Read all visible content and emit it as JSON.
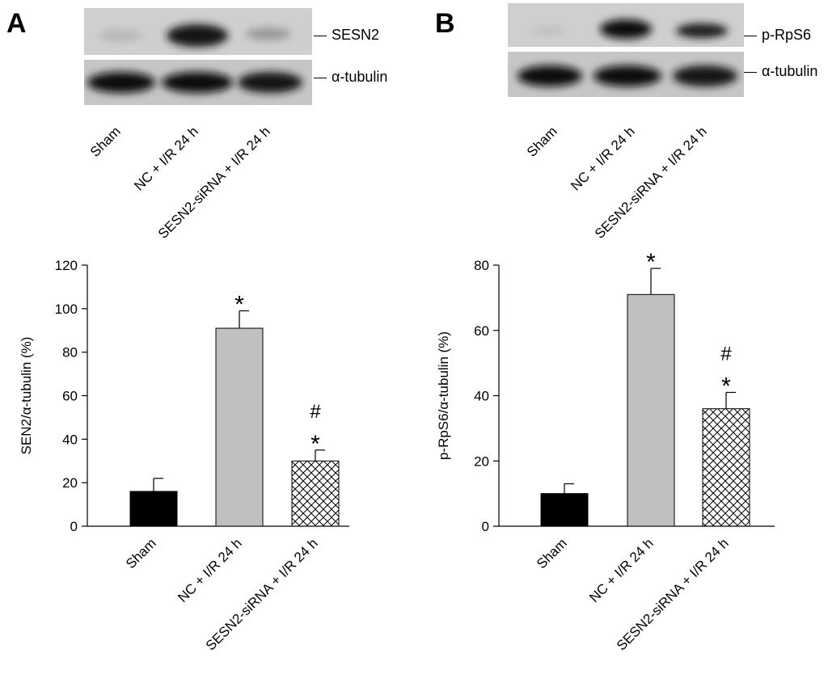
{
  "panels": [
    {
      "letter": "A",
      "blot_labels": [
        "SESN2",
        "α-tubulin"
      ],
      "lane_labels": [
        "Sham",
        "NC + I/R 24 h",
        "SESN2-siRNA + I/R 24 h"
      ]
    },
    {
      "letter": "B",
      "blot_labels": [
        "p-RpS6",
        "α-tubulin"
      ],
      "lane_labels": [
        "Sham",
        "NC + I/R 24 h",
        "SESN2-siRNA + I/R 24 h"
      ]
    }
  ],
  "colors": {
    "sham": "#000000",
    "nc": "#c0c0c0",
    "sirna": "#ffffff"
  },
  "chart_data": [
    {
      "type": "bar",
      "categories": [
        "Sham",
        "NC + I/R 24 h",
        "SESN2-siRNA + I/R 24 h"
      ],
      "values": [
        16,
        91,
        30
      ],
      "errors": [
        6,
        8,
        5
      ],
      "significance": [
        "",
        "*",
        "#\n*"
      ],
      "fills": [
        "solid-black",
        "solid-gray",
        "crosshatch"
      ],
      "ylabel": "SEN2/α-tubulin (%)",
      "xlabel": "",
      "ylim": [
        0,
        120
      ],
      "yticks": [
        0,
        20,
        40,
        60,
        80,
        100,
        120
      ],
      "grid": false
    },
    {
      "type": "bar",
      "categories": [
        "Sham",
        "NC + I/R 24 h",
        "SESN2-siRNA + I/R 24 h"
      ],
      "values": [
        10,
        71,
        36
      ],
      "errors": [
        3,
        8,
        5
      ],
      "significance": [
        "",
        "*",
        "#\n*"
      ],
      "fills": [
        "solid-black",
        "solid-gray",
        "crosshatch"
      ],
      "ylabel": "p-RpS6/α-tubulin (%)",
      "xlabel": "",
      "ylim": [
        0,
        80
      ],
      "yticks": [
        0,
        20,
        40,
        60,
        80
      ],
      "grid": false
    }
  ]
}
